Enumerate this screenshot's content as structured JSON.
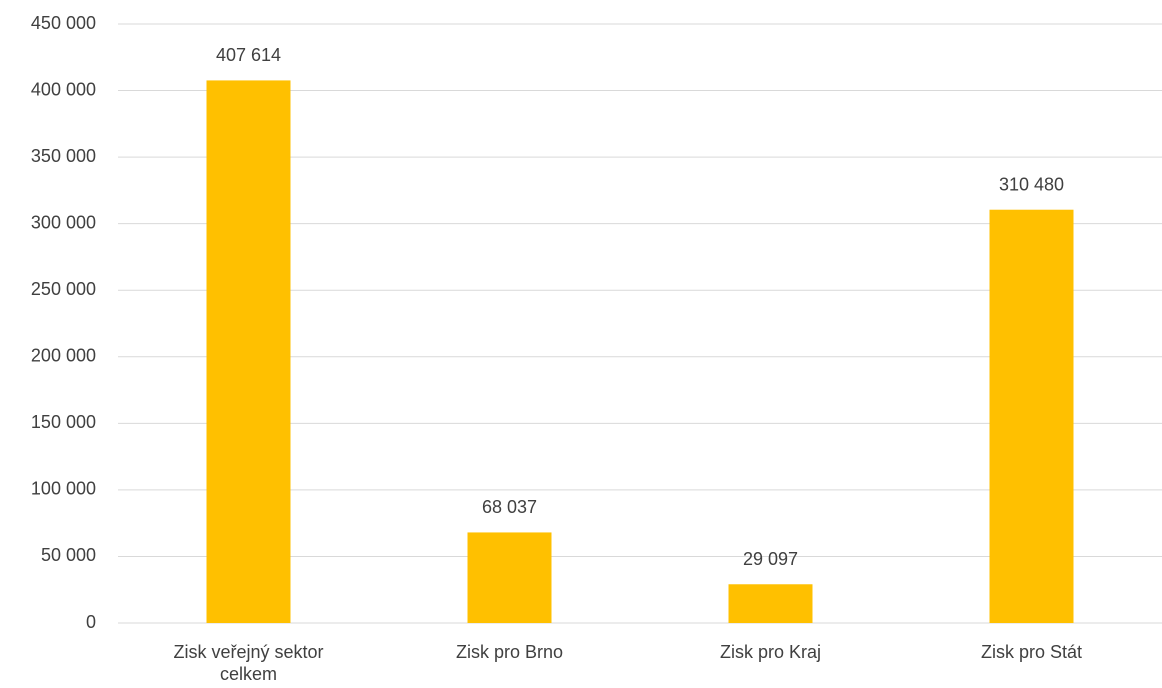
{
  "chart_data": {
    "type": "bar",
    "categories": [
      "Zisk veřejný sektor celkem",
      "Zisk pro Brno",
      "Zisk pro Kraj",
      "Zisk pro Stát"
    ],
    "values": [
      407614,
      68037,
      29097,
      310480
    ],
    "value_labels": [
      "407 614",
      "68 037",
      "29 097",
      "310 480"
    ],
    "color": "#ffc000",
    "ylim": [
      0,
      450000
    ],
    "yticks": [
      0,
      {
        "value": 50000,
        "label": "50 000"
      },
      {
        "value": 100000,
        "label": "100 000"
      },
      {
        "value": 150000,
        "label": "150 000"
      },
      {
        "value": 200000,
        "label": "200 000"
      },
      {
        "value": 250000,
        "label": "250 000"
      },
      {
        "value": 300000,
        "label": "300 000"
      },
      {
        "value": 350000,
        "label": "350 000"
      },
      {
        "value": 400000,
        "label": "400 000"
      },
      {
        "value": 450000,
        "label": "450 000"
      }
    ],
    "grid": true
  }
}
